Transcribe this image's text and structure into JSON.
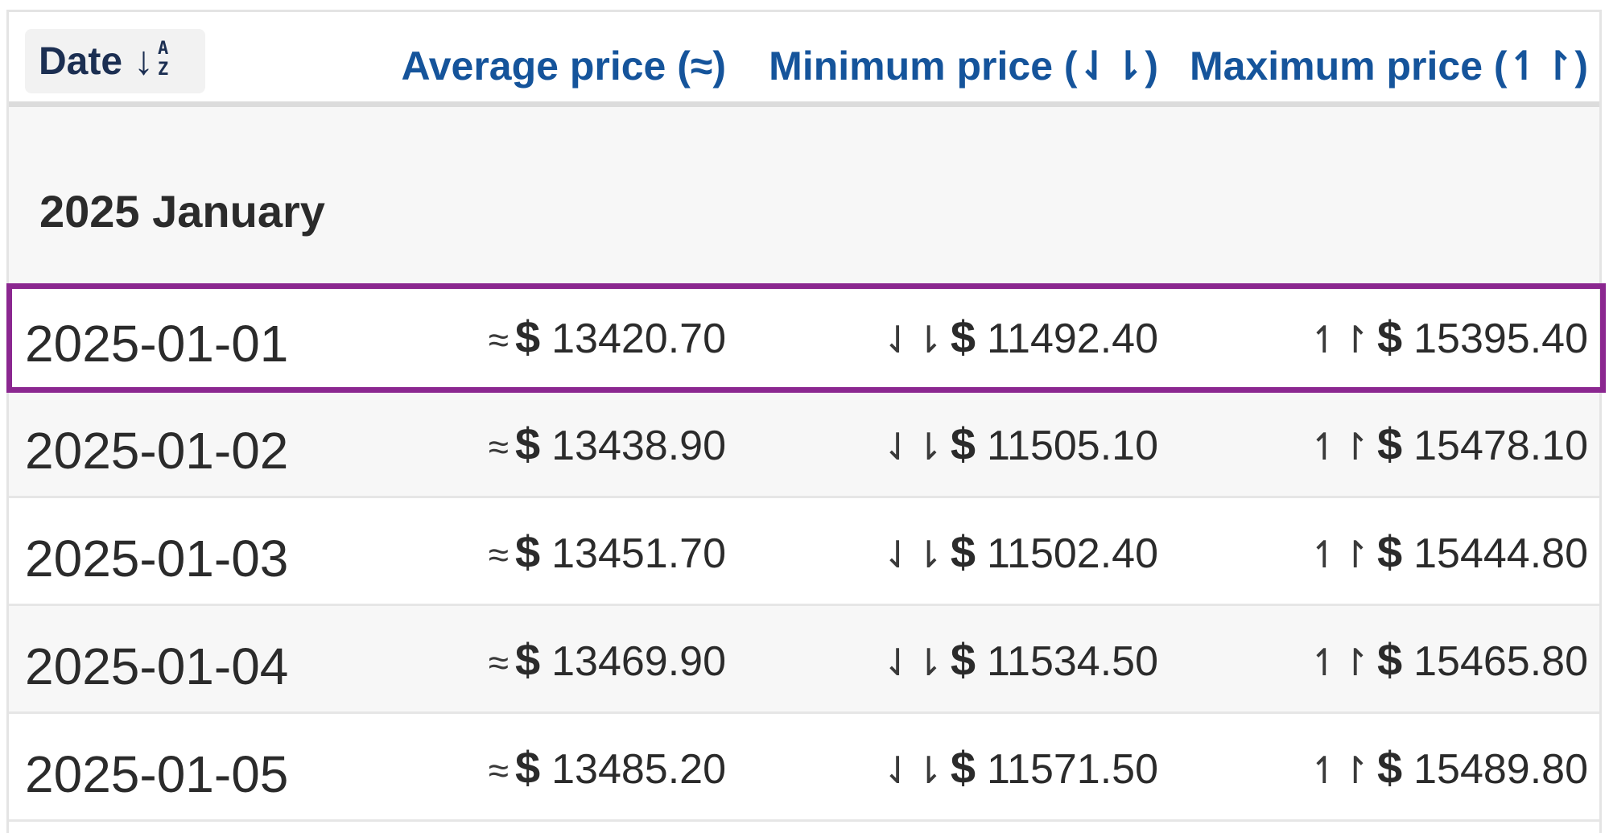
{
  "header": {
    "date_label": "Date",
    "sort_top": "A",
    "sort_bottom": "Z",
    "avg_label": "Average price (≈)",
    "min_label": "Minimum price (⇃⇂)",
    "max_label": "Maximum price (↿↾)"
  },
  "month": "2025 January",
  "symbols": {
    "avg": "≈",
    "min": "⇃⇂",
    "max": "↿↾",
    "currency": "$"
  },
  "rows": [
    {
      "date": "2025-01-01",
      "avg": "13420.70",
      "min": "11492.40",
      "max": "15395.40",
      "selected": true
    },
    {
      "date": "2025-01-02",
      "avg": "13438.90",
      "min": "11505.10",
      "max": "15478.10"
    },
    {
      "date": "2025-01-03",
      "avg": "13451.70",
      "min": "11502.40",
      "max": "15444.80"
    },
    {
      "date": "2025-01-04",
      "avg": "13469.90",
      "min": "11534.50",
      "max": "15465.80"
    },
    {
      "date": "2025-01-05",
      "avg": "13485.20",
      "min": "11571.50",
      "max": "15489.80"
    }
  ],
  "colors": {
    "header_link": "#15549b",
    "highlight": "#8b2790",
    "date_header": "#1c2f52"
  }
}
